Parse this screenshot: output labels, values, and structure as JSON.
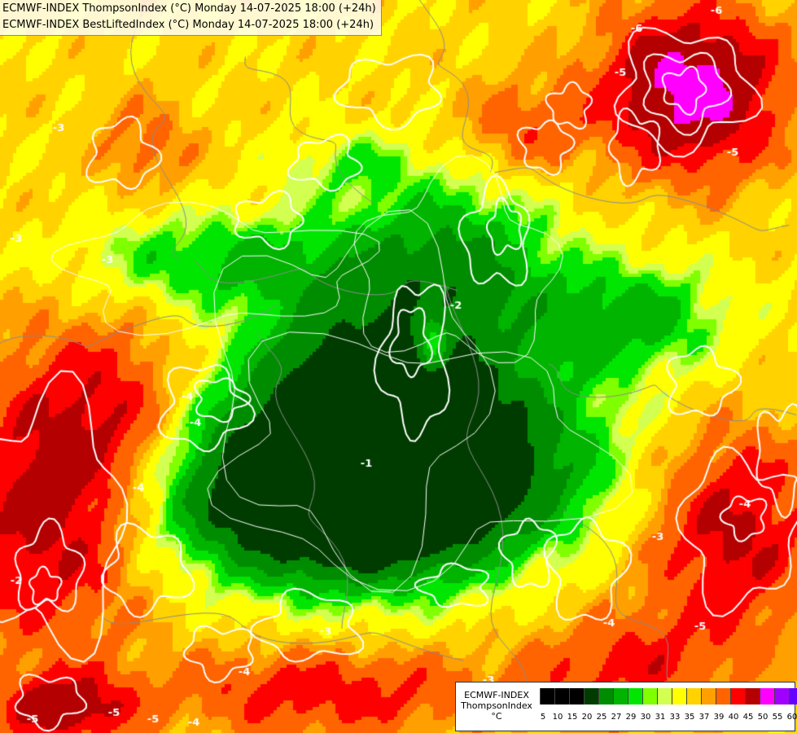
{
  "header": {
    "line1": "ECMWF-INDEX ThompsonIndex (°C) Monday 14-07-2025 18:00 (+24h)",
    "line2": "ECMWF-INDEX BestLiftedIndex (°C) Monday 14-07-2025 18:00 (+24h)"
  },
  "legend": {
    "title_lines": [
      "ECMWF-INDEX",
      "ThompsonIndex",
      "°C"
    ],
    "ticks": [
      "5",
      "10",
      "15",
      "20",
      "25",
      "27",
      "29",
      "30",
      "31",
      "33",
      "35",
      "37",
      "39",
      "40",
      "45",
      "50",
      "55",
      "60"
    ],
    "colors": [
      "#000000",
      "#000000",
      "#000000",
      "#003c00",
      "#008c00",
      "#00b400",
      "#00e600",
      "#80ff00",
      "#d2ff50",
      "#ffff00",
      "#ffd200",
      "#ffa000",
      "#ff6400",
      "#ff0000",
      "#b40000",
      "#ff00ff",
      "#a000ff",
      "#6400ff",
      "#0000ff"
    ]
  },
  "contour_labels": [
    "-6",
    "-6",
    "-5",
    "-5",
    "-4",
    "-4",
    "-3",
    "-3",
    "-3",
    "-2",
    "-2",
    "-1",
    "-4",
    "-3",
    "-4",
    "-3",
    "-4",
    "-5",
    "-5",
    "-4",
    "-5",
    "-4",
    "-5",
    "-3"
  ],
  "legend_colors_ref": "legend.colors",
  "map_colors": {
    "green_dark": "#003c00",
    "green_mid": "#008c00",
    "green": "#00b400",
    "green_light": "#00e600",
    "lime": "#80ff00",
    "yellow_green": "#d2ff50",
    "yellow": "#ffff00",
    "orange_light": "#ffd200",
    "orange": "#ffa000",
    "orange_dark": "#ff6400",
    "red": "#ff0000",
    "dark_red": "#b40000",
    "magenta": "#ff00ff",
    "contour": "#ffffff",
    "borders": "#8c8c8c"
  }
}
